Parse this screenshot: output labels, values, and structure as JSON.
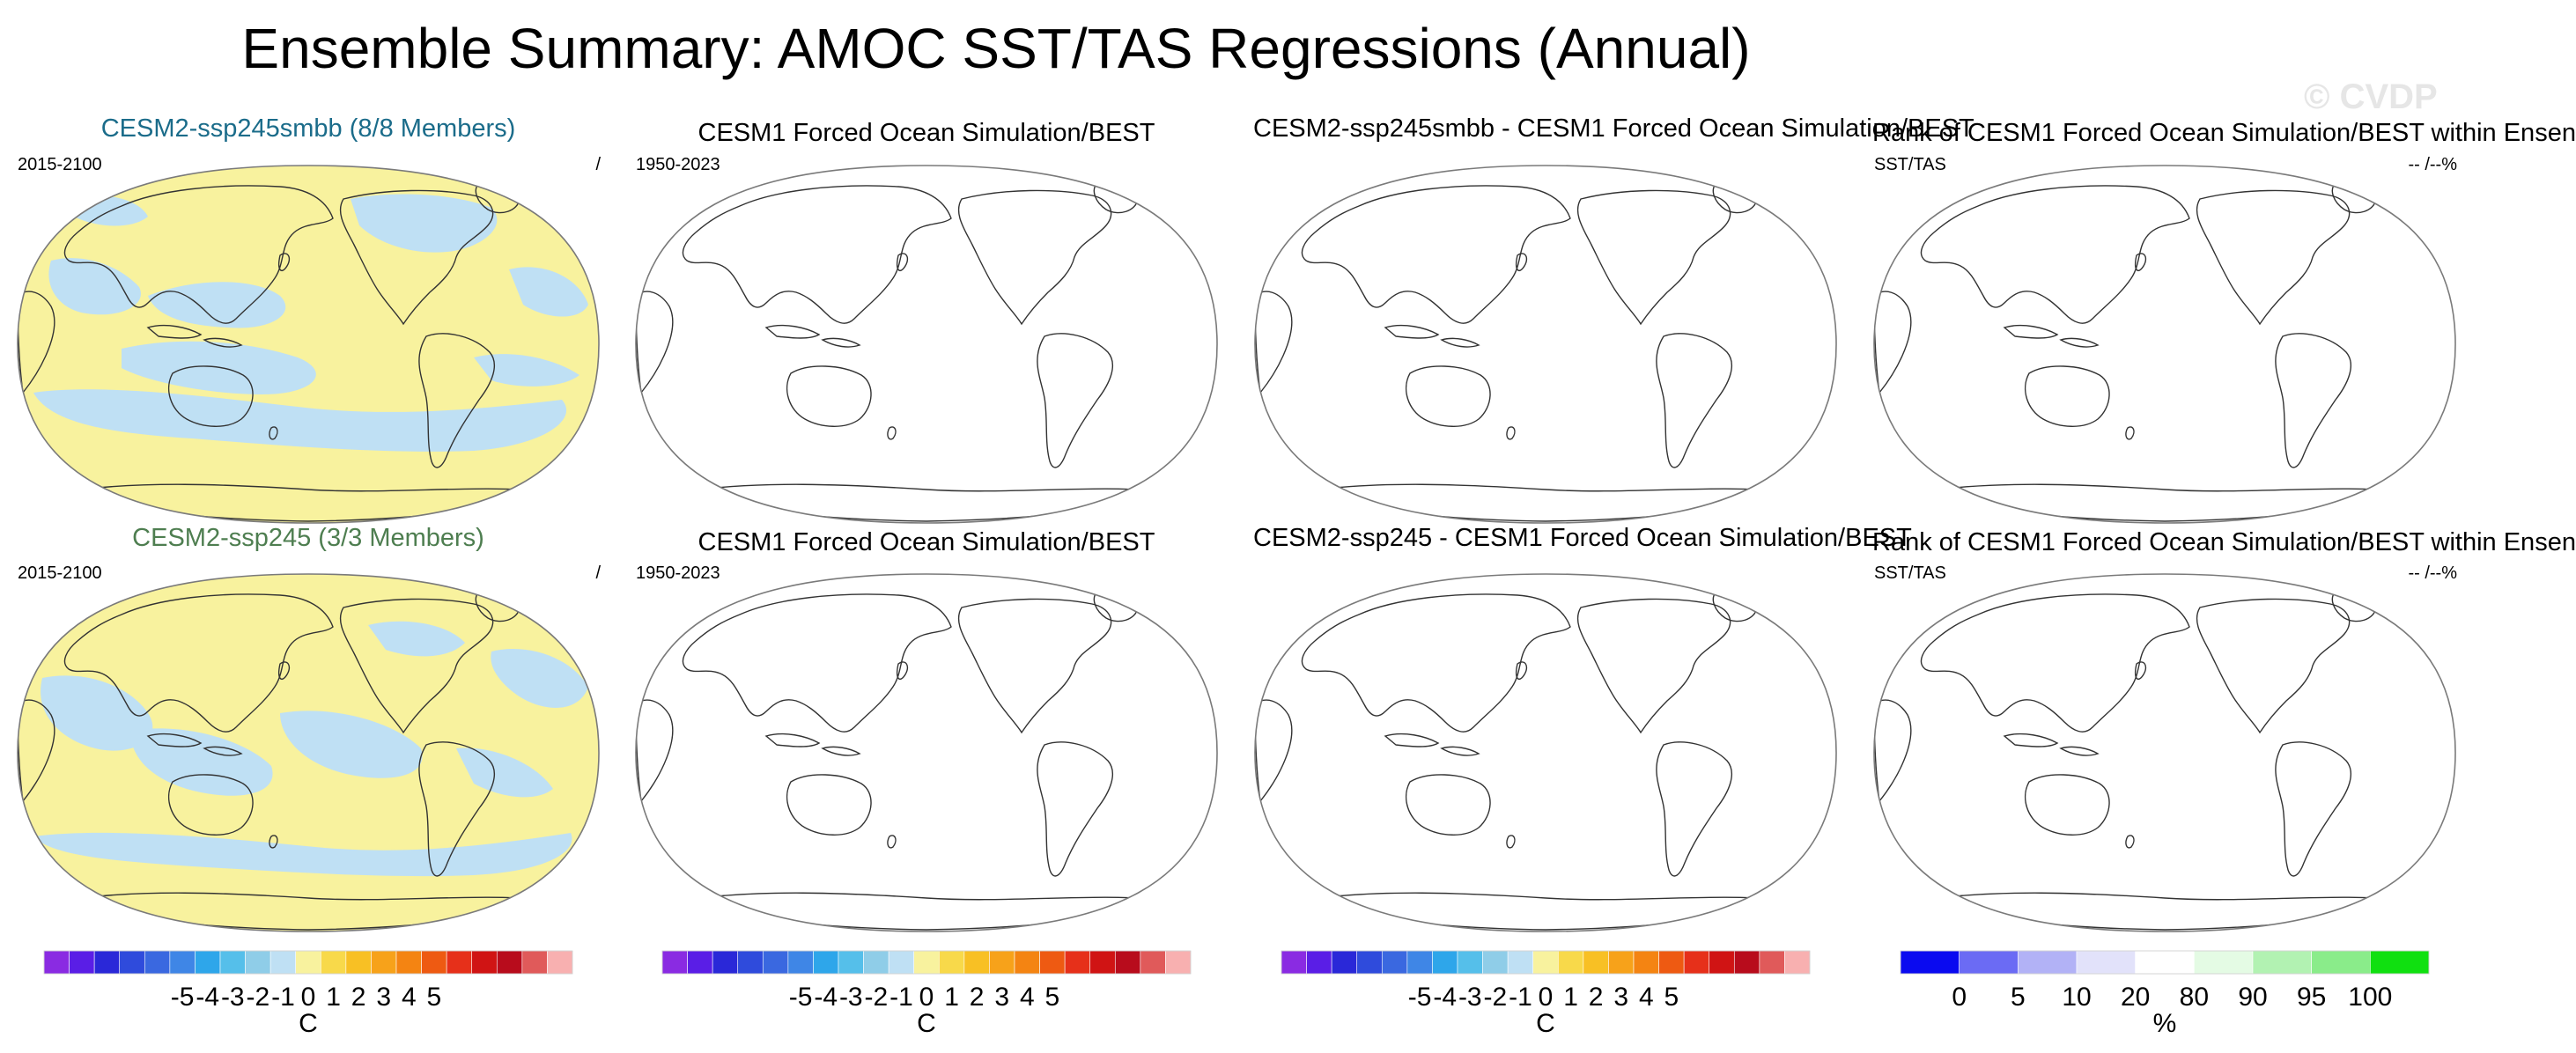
{
  "header": {
    "title": "Ensemble Summary: AMOC SST/TAS Regressions (Annual)",
    "watermark": "© CVDP"
  },
  "colors": {
    "map_outline": "#7a7a7a",
    "coast": "#333333",
    "positive_fill": "#f8f29e",
    "negative_fill": "#bfe0f4",
    "title_teal": "#1b6c8a",
    "title_green": "#4e7e50"
  },
  "rows": [
    {
      "panels": [
        {
          "title": "CESM2-ssp245smbb (8/8 Members)",
          "left_label": "2015-2100",
          "right_label": "/",
          "filled": true
        },
        {
          "title": "CESM1 Forced Ocean Simulation/BEST",
          "left_label": "1950-2023",
          "right_label": "",
          "filled": false
        },
        {
          "title": "CESM2-ssp245smbb - CESM1 Forced Ocean Simulation/BEST",
          "left_label": "",
          "right_label": "",
          "filled": false
        },
        {
          "title": "Rank of CESM1 Forced Ocean Simulation/BEST within Ensen",
          "left_label": "SST/TAS",
          "right_label": "-- /--%",
          "filled": false
        }
      ]
    },
    {
      "panels": [
        {
          "title": "CESM2-ssp245 (3/3 Members)",
          "left_label": "2015-2100",
          "right_label": "/",
          "filled": true
        },
        {
          "title": "CESM1 Forced Ocean Simulation/BEST",
          "left_label": "1950-2023",
          "right_label": "",
          "filled": false
        },
        {
          "title": "CESM2-ssp245 - CESM1 Forced Ocean Simulation/BEST",
          "left_label": "",
          "right_label": "",
          "filled": false
        },
        {
          "title": "Rank of CESM1 Forced Ocean Simulation/BEST within Ensen",
          "left_label": "SST/TAS",
          "right_label": "-- /--%",
          "filled": false
        }
      ]
    }
  ],
  "colorbars": [
    {
      "unit": "C",
      "colors": [
        "#8a2be2",
        "#5a1ee6",
        "#2a28d8",
        "#2f4bdc",
        "#3a68e0",
        "#3f86e6",
        "#2ea6ea",
        "#55bfea",
        "#8fcde8",
        "#bfe0f4",
        "#f8f29e",
        "#f8d94a",
        "#f8c024",
        "#f7a21a",
        "#f48412",
        "#ee5a12",
        "#e6301a",
        "#d01414",
        "#b80c1c",
        "#e05a5a",
        "#f8b0b0"
      ],
      "ticks": [
        "-5",
        "-4",
        "-3",
        "-2",
        "-1",
        "0",
        "1",
        "2",
        "3",
        "4",
        "5"
      ]
    },
    {
      "unit": "C",
      "colors": [
        "#8a2be2",
        "#5a1ee6",
        "#2a28d8",
        "#2f4bdc",
        "#3a68e0",
        "#3f86e6",
        "#2ea6ea",
        "#55bfea",
        "#8fcde8",
        "#bfe0f4",
        "#f8f29e",
        "#f8d94a",
        "#f8c024",
        "#f7a21a",
        "#f48412",
        "#ee5a12",
        "#e6301a",
        "#d01414",
        "#b80c1c",
        "#e05a5a",
        "#f8b0b0"
      ],
      "ticks": [
        "-5",
        "-4",
        "-3",
        "-2",
        "-1",
        "0",
        "1",
        "2",
        "3",
        "4",
        "5"
      ]
    },
    {
      "unit": "C",
      "colors": [
        "#8a2be2",
        "#5a1ee6",
        "#2a28d8",
        "#2f4bdc",
        "#3a68e0",
        "#3f86e6",
        "#2ea6ea",
        "#55bfea",
        "#8fcde8",
        "#bfe0f4",
        "#f8f29e",
        "#f8d94a",
        "#f8c024",
        "#f7a21a",
        "#f48412",
        "#ee5a12",
        "#e6301a",
        "#d01414",
        "#b80c1c",
        "#e05a5a",
        "#f8b0b0"
      ],
      "ticks": [
        "-5",
        "-4",
        "-3",
        "-2",
        "-1",
        "0",
        "1",
        "2",
        "3",
        "4",
        "5"
      ]
    },
    {
      "unit": "%",
      "colors": [
        "#0a0af0",
        "#6b6bf4",
        "#b2b2f6",
        "#e2e2fa",
        "#ffffff",
        "#e4fbe4",
        "#b2f2b2",
        "#8aec8a",
        "#10e010"
      ],
      "ticks": [
        "0",
        "5",
        "10",
        "20",
        "80",
        "90",
        "95",
        "100"
      ]
    }
  ]
}
